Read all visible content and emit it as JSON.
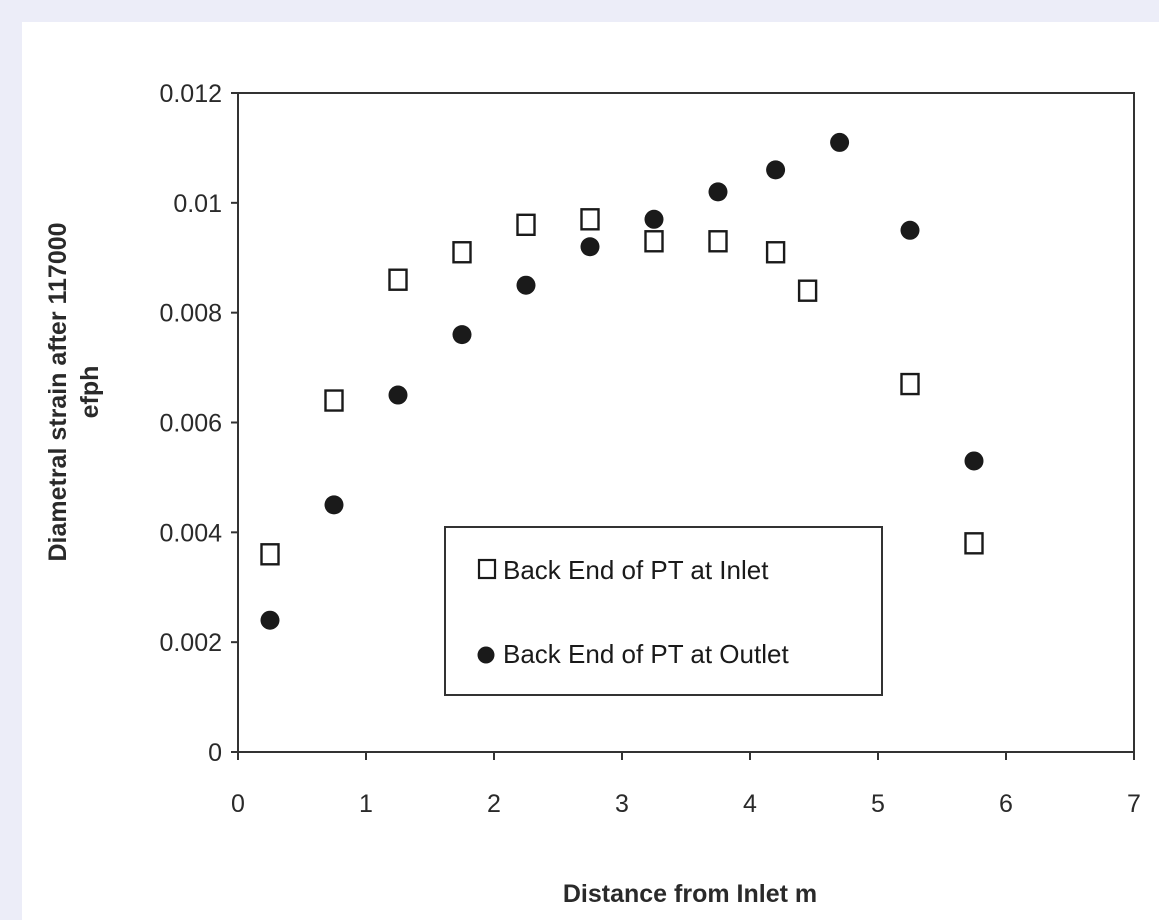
{
  "chart_data": {
    "type": "scatter",
    "title": "",
    "xlabel": "Distance from Inlet m",
    "ylabel_lines": [
      "Diametral strain after 117000",
      "efph"
    ],
    "xlim": [
      0,
      7
    ],
    "ylim": [
      0,
      0.012
    ],
    "x_ticks": [
      0,
      1,
      2,
      3,
      4,
      5,
      6,
      7
    ],
    "x_tick_labels": [
      "0",
      "1",
      "2",
      "3",
      "4",
      "5",
      "6",
      "7"
    ],
    "y_ticks": [
      0,
      0.002,
      0.004,
      0.006,
      0.008,
      0.01,
      0.012
    ],
    "y_tick_labels": [
      "0",
      "0.002",
      "0.004",
      "0.006",
      "0.008",
      "0.01",
      "0.012"
    ],
    "grid": false,
    "legend_position": "bottom-center",
    "series": [
      {
        "name": "Back End of PT at Inlet",
        "marker": "open-square",
        "color": "#1a1a1a",
        "x": [
          0.25,
          0.75,
          1.25,
          1.75,
          2.25,
          2.75,
          3.25,
          3.75,
          4.2,
          4.45,
          5.25,
          5.75
        ],
        "y": [
          0.0036,
          0.0064,
          0.0086,
          0.0091,
          0.0096,
          0.0097,
          0.0093,
          0.0093,
          0.0091,
          0.0084,
          0.0067,
          0.0038
        ]
      },
      {
        "name": "Back End of PT at Outlet",
        "marker": "filled-circle",
        "color": "#1a1a1a",
        "x": [
          0.25,
          0.75,
          1.25,
          1.75,
          2.25,
          2.75,
          3.25,
          3.75,
          4.2,
          4.7,
          5.25,
          5.75
        ],
        "y": [
          0.0024,
          0.0045,
          0.0065,
          0.0076,
          0.0085,
          0.0092,
          0.0097,
          0.0102,
          0.0106,
          0.0111,
          0.0095,
          0.0053
        ]
      }
    ]
  }
}
